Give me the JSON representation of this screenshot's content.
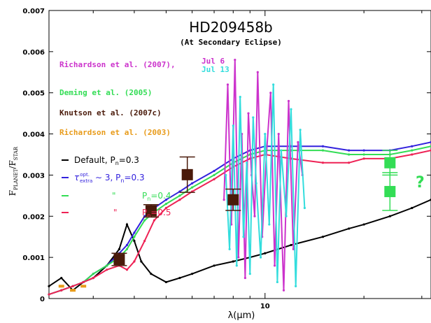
{
  "chart_data": {
    "type": "line",
    "title": "HD209458b",
    "subtitle": "(At Secondary Eclipse)",
    "xlabel": "λ(μm)",
    "ylabel_main": "F",
    "ylabel_sub1": "PLANET",
    "ylabel_mid": "/F",
    "ylabel_sub2": "STAR",
    "xscale": "log",
    "xlim": [
      2.2,
      32
    ],
    "ylim": [
      0,
      0.007
    ],
    "yticks": [
      "0",
      "0.001",
      "0.002",
      "0.003",
      "0.004",
      "0.005",
      "0.006",
      "0.007"
    ],
    "yticks_values": [
      0,
      0.001,
      0.002,
      0.003,
      0.004,
      0.005,
      0.006,
      0.007
    ],
    "xtick_labels": [
      {
        "value": 10,
        "label": "10"
      }
    ],
    "legend_observations": [
      {
        "label": "Richardson et al. (2007),",
        "color": "#cc33cc",
        "extra": [
          "Jul 6",
          "Jul 13"
        ],
        "extra_colors": [
          "#cc33cc",
          "#33dddd"
        ]
      },
      {
        "label": "Deming et al. (2005)",
        "color": "#33dd55"
      },
      {
        "label": "Knutson et al. (2007c)",
        "color": "#4a1a0a"
      },
      {
        "label": "Richardson et al. (2003)",
        "color": "#e89b1a"
      }
    ],
    "legend_models": [
      {
        "label": "Default, P",
        "sub": "n",
        "tail": "=0.3",
        "color": "#000000"
      },
      {
        "label": "τ",
        "sup": "opt.",
        "sub": "extra",
        "tail": "∼ 3, P",
        "sub2": "n",
        "tail2": "=0.3",
        "color": "#3322dd"
      },
      {
        "label": "\"",
        "tail": "P",
        "sub2": "n",
        "tail2": "=0.4",
        "color": "#33dd55"
      },
      {
        "label": "\"",
        "tail": "P",
        "sub2": "n",
        "tail2": "=0.5",
        "color": "#ee2255"
      }
    ],
    "series": [
      {
        "name": "Default, Pn=0.3",
        "color": "#000000",
        "x": [
          2.2,
          2.4,
          2.6,
          2.8,
          3.0,
          3.3,
          3.6,
          3.8,
          4.0,
          4.2,
          4.5,
          5.0,
          5.5,
          6.0,
          7.0,
          8.0,
          9.0,
          10,
          12,
          15,
          18,
          20,
          24,
          28,
          32
        ],
        "y": [
          0.0003,
          0.0005,
          0.0002,
          0.0004,
          0.0005,
          0.0008,
          0.0012,
          0.0018,
          0.0014,
          0.0009,
          0.0006,
          0.0004,
          0.0005,
          0.0006,
          0.0008,
          0.0009,
          0.001,
          0.0011,
          0.0013,
          0.0015,
          0.0017,
          0.0018,
          0.002,
          0.0022,
          0.0024
        ]
      },
      {
        "name": "τextra∼3, Pn=0.3",
        "color": "#3322dd",
        "x": [
          2.2,
          2.4,
          2.6,
          2.8,
          3.0,
          3.3,
          3.6,
          3.8,
          4.0,
          4.3,
          4.6,
          5.0,
          5.5,
          6.0,
          7.0,
          8.0,
          9.0,
          10,
          12,
          15,
          18,
          20,
          24,
          28,
          32
        ],
        "y": [
          0.0001,
          0.0002,
          0.0003,
          0.0004,
          0.0006,
          0.0008,
          0.0011,
          0.0013,
          0.0016,
          0.002,
          0.0022,
          0.0024,
          0.0026,
          0.0028,
          0.0031,
          0.0034,
          0.0036,
          0.0037,
          0.0037,
          0.0037,
          0.0036,
          0.0036,
          0.0036,
          0.0037,
          0.0038
        ]
      },
      {
        "name": "Pn=0.4",
        "color": "#33dd55",
        "x": [
          2.2,
          2.4,
          2.6,
          2.8,
          3.0,
          3.3,
          3.6,
          3.8,
          4.0,
          4.3,
          4.6,
          5.0,
          5.5,
          6.0,
          7.0,
          8.0,
          9.0,
          10,
          12,
          15,
          18,
          20,
          24,
          28,
          32
        ],
        "y": [
          0.0001,
          0.0002,
          0.0003,
          0.0004,
          0.0006,
          0.0008,
          0.001,
          0.0012,
          0.0015,
          0.0019,
          0.0021,
          0.0023,
          0.0025,
          0.0027,
          0.003,
          0.0033,
          0.0035,
          0.0036,
          0.0036,
          0.0036,
          0.0035,
          0.0035,
          0.0035,
          0.0036,
          0.0037
        ]
      },
      {
        "name": "Pn=0.5",
        "color": "#ee2255",
        "x": [
          2.2,
          2.4,
          2.6,
          2.8,
          3.0,
          3.3,
          3.6,
          3.8,
          4.0,
          4.3,
          4.6,
          5.0,
          5.5,
          6.0,
          7.0,
          8.0,
          9.0,
          10,
          12,
          15,
          18,
          20,
          24,
          28,
          32
        ],
        "y": [
          0.0001,
          0.0002,
          0.0003,
          0.0004,
          0.0005,
          0.0007,
          0.0008,
          0.0007,
          0.0009,
          0.0014,
          0.0019,
          0.0022,
          0.0024,
          0.0026,
          0.0029,
          0.0032,
          0.0034,
          0.0035,
          0.0034,
          0.0033,
          0.0033,
          0.0034,
          0.0034,
          0.0035,
          0.0036
        ]
      },
      {
        "name": "Richardson et al. (2007), Jul 6",
        "color": "#cc33cc",
        "x": [
          7.5,
          7.7,
          7.9,
          8.1,
          8.3,
          8.5,
          8.7,
          8.9,
          9.1,
          9.3,
          9.5,
          9.8,
          10.1,
          10.4,
          10.7,
          11.0,
          11.4,
          11.8,
          12.2,
          12.6,
          13.0
        ],
        "y": [
          0.0024,
          0.0052,
          0.0018,
          0.0058,
          0.001,
          0.004,
          0.0005,
          0.0045,
          0.003,
          0.002,
          0.0055,
          0.0015,
          0.0035,
          0.005,
          0.0008,
          0.004,
          0.0002,
          0.0048,
          0.0012,
          0.0038,
          0.003
        ]
      },
      {
        "name": "Richardson et al. (2007), Jul 13",
        "color": "#33dddd",
        "x": [
          7.6,
          7.8,
          8.0,
          8.2,
          8.4,
          8.6,
          8.8,
          9.0,
          9.2,
          9.4,
          9.7,
          10.0,
          10.3,
          10.6,
          10.9,
          11.2,
          11.6,
          12.0,
          12.4,
          12.8,
          13.2
        ],
        "y": [
          0.003,
          0.0012,
          0.0042,
          0.0008,
          0.0049,
          0.0015,
          0.0033,
          0.0006,
          0.0044,
          0.0028,
          0.001,
          0.004,
          0.0018,
          0.0052,
          0.0004,
          0.0036,
          0.002,
          0.0046,
          0.0003,
          0.0041,
          0.0022
        ]
      }
    ],
    "points": [
      {
        "set": "Knutson et al. (2007c)",
        "color": "#4a1a0a",
        "x": 3.6,
        "y": 0.00095,
        "err": 0.00015
      },
      {
        "set": "Knutson et al. (2007c)",
        "color": "#4a1a0a",
        "x": 4.5,
        "y": 0.00213,
        "err": 0.00015
      },
      {
        "set": "Knutson et al. (2007c)",
        "color": "#4a1a0a",
        "x": 5.8,
        "y": 0.00301,
        "err": 0.00043
      },
      {
        "set": "Knutson et al. (2007c)",
        "color": "#4a1a0a",
        "x": 8.0,
        "y": 0.0024,
        "err": 0.00026
      },
      {
        "set": "Deming et al. (2005)",
        "color": "#33dd55",
        "x": 24,
        "y": 0.0026,
        "err": 0.00046
      },
      {
        "set": "Deming et al. (2005)",
        "color": "#33dd55",
        "x": 24,
        "y": 0.0033,
        "err": 0.0003
      }
    ],
    "richardson2003": {
      "color": "#e89b1a",
      "x": [
        2.4,
        2.6,
        2.8
      ],
      "y": [
        0.0003,
        0.0002,
        0.0003
      ]
    },
    "question_mark": "?",
    "question_color": "#33dd55"
  }
}
